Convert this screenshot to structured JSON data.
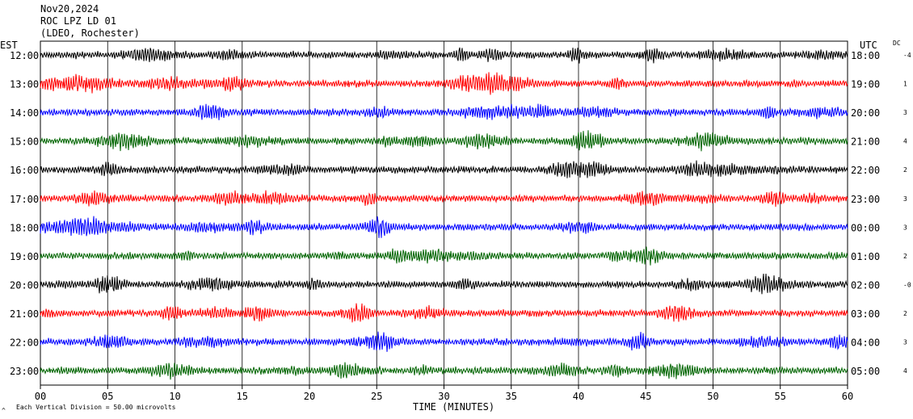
{
  "header": {
    "date": "Nov20,2024",
    "station": "ROC LPZ LD 01",
    "network": "(LDEO, Rochester)"
  },
  "chart_data": {
    "type": "line",
    "left_axis_title": "EST",
    "right_axis_title": "UTC",
    "dc_title": "DC",
    "xlabel": "TIME (MINUTES)",
    "xlim": [
      0,
      60
    ],
    "x_ticks": [
      "00",
      "05",
      "10",
      "15",
      "20",
      "25",
      "30",
      "35",
      "40",
      "45",
      "50",
      "55",
      "60"
    ],
    "footer_note": "Each Vertical Division =   50.00 microvolts",
    "footer_mark": "^",
    "trace_colors": [
      "#000000",
      "#ff0000",
      "#0000ff",
      "#006400"
    ],
    "rows": [
      {
        "est": "12:00",
        "utc": "18:00",
        "dc": "-4"
      },
      {
        "est": "13:00",
        "utc": "19:00",
        "dc": "1"
      },
      {
        "est": "14:00",
        "utc": "20:00",
        "dc": "3"
      },
      {
        "est": "15:00",
        "utc": "21:00",
        "dc": "4"
      },
      {
        "est": "16:00",
        "utc": "22:00",
        "dc": "2"
      },
      {
        "est": "17:00",
        "utc": "23:00",
        "dc": "3"
      },
      {
        "est": "18:00",
        "utc": "00:00",
        "dc": "3"
      },
      {
        "est": "19:00",
        "utc": "01:00",
        "dc": "2"
      },
      {
        "est": "20:00",
        "utc": "02:00",
        "dc": "-0"
      },
      {
        "est": "21:00",
        "utc": "03:00",
        "dc": "2"
      },
      {
        "est": "22:00",
        "utc": "04:00",
        "dc": "3"
      },
      {
        "est": "23:00",
        "utc": "05:00",
        "dc": "4"
      }
    ]
  }
}
